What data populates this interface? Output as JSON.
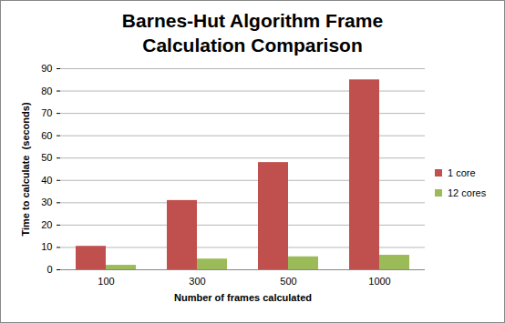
{
  "chart_data": {
    "type": "bar",
    "title": "Barnes-Hut Algorithm Frame Calculation Comparison",
    "x_label": "Number of frames calculated",
    "y_label": "Time to calculate  (seconds)",
    "categories": [
      "100",
      "300",
      "500",
      "1000"
    ],
    "series": [
      {
        "name": "1 core",
        "color": "#c0504d",
        "values": [
          10.5,
          31,
          48,
          85
        ]
      },
      {
        "name": "12 cores",
        "color": "#9bbb59",
        "values": [
          2,
          4.8,
          5.8,
          6.5
        ]
      }
    ],
    "ylim": [
      0,
      90
    ],
    "yticks": [
      0,
      10,
      20,
      30,
      40,
      50,
      60,
      70,
      80,
      90
    ],
    "grid": true,
    "legend": "right"
  }
}
